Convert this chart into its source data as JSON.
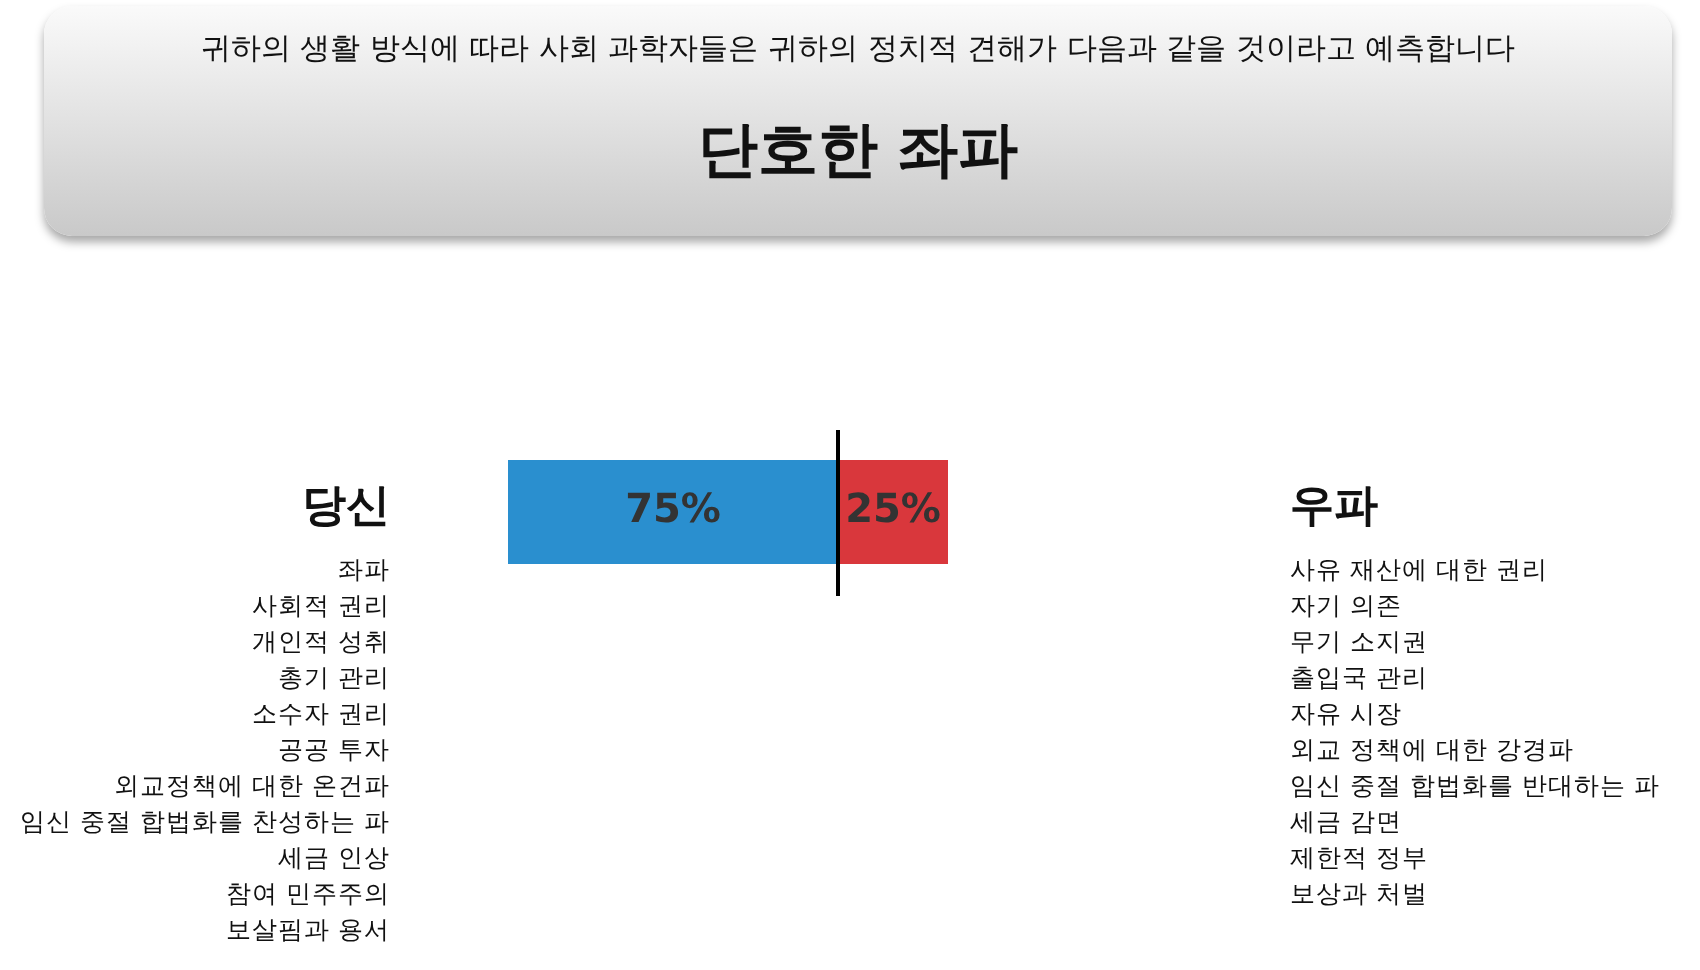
{
  "chart_data": {
    "type": "bar",
    "title": "단호한 좌파",
    "subtitle": "귀하의 생활 방식에 따라 사회 과학자들은 귀하의 정치적 견해가 다음과 같을 것이라고 예측합니다",
    "orientation": "horizontal",
    "stacked": true,
    "categories": [
      null
    ],
    "series": [
      {
        "color": "#2a8fcf",
        "values": [
          75
        ],
        "value_labels": [
          "75%"
        ]
      },
      {
        "color": "#d9373c",
        "values": [
          25
        ],
        "value_labels": [
          "25%"
        ]
      }
    ],
    "xlim": [
      0,
      100
    ],
    "tick_labels": false,
    "ref_lines": [
      {
        "axis": "x",
        "value": 75,
        "color": "#000000"
      }
    ],
    "annotations": [
      "당신",
      "좌파\n사회적 권리\n개인적 성취\n총기 관리\n소수자 권리\n공공 투자\n외교정책에 대한 온건파\n임신 중절 합법화를 찬성하는 파\n세금 인상\n참여 민주주의\n보살핌과 용서",
      "우파",
      "사유 재산에 대한 권리\n자기 의존\n무기 소지권\n출입국 관리\n자유 시장\n외교 정책에 대한 강경파\n임신 중절 합법화를 반대하는 파\n세금 감면\n제한적 정부\n보상과 처벌"
    ]
  }
}
